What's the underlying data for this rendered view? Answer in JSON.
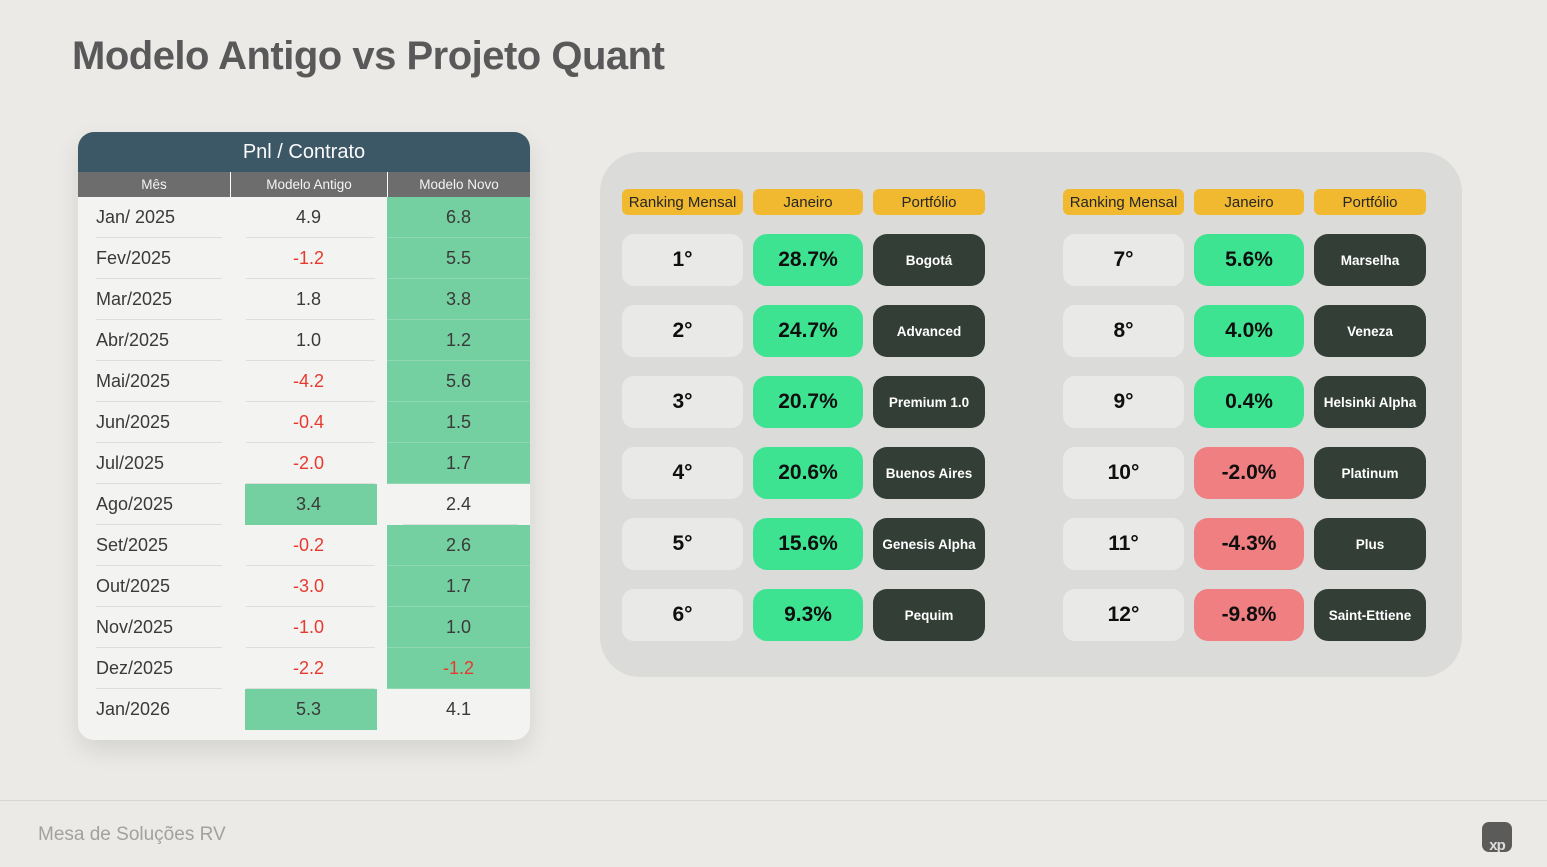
{
  "page": {
    "title": "Modelo Antigo vs Projeto Quant",
    "footer": "Mesa de Soluções RV",
    "logo_text": "xp"
  },
  "pnl_table": {
    "title": "Pnl / Contrato",
    "columns": [
      "Mês",
      "Modelo Antigo",
      "Modelo Novo"
    ],
    "rows": [
      {
        "month": "Jan/ 2025",
        "antigo": "4.9",
        "novo": "6.8",
        "winner": "novo",
        "antigo_neg": false,
        "novo_neg": false
      },
      {
        "month": "Fev/2025",
        "antigo": "-1.2",
        "novo": "5.5",
        "winner": "novo",
        "antigo_neg": true,
        "novo_neg": false
      },
      {
        "month": "Mar/2025",
        "antigo": "1.8",
        "novo": "3.8",
        "winner": "novo",
        "antigo_neg": false,
        "novo_neg": false
      },
      {
        "month": "Abr/2025",
        "antigo": "1.0",
        "novo": "1.2",
        "winner": "novo",
        "antigo_neg": false,
        "novo_neg": false
      },
      {
        "month": "Mai/2025",
        "antigo": "-4.2",
        "novo": "5.6",
        "winner": "novo",
        "antigo_neg": true,
        "novo_neg": false
      },
      {
        "month": "Jun/2025",
        "antigo": "-0.4",
        "novo": "1.5",
        "winner": "novo",
        "antigo_neg": true,
        "novo_neg": false
      },
      {
        "month": "Jul/2025",
        "antigo": "-2.0",
        "novo": "1.7",
        "winner": "novo",
        "antigo_neg": true,
        "novo_neg": false
      },
      {
        "month": "Ago/2025",
        "antigo": "3.4",
        "novo": "2.4",
        "winner": "antigo",
        "antigo_neg": false,
        "novo_neg": false
      },
      {
        "month": "Set/2025",
        "antigo": "-0.2",
        "novo": "2.6",
        "winner": "novo",
        "antigo_neg": true,
        "novo_neg": false
      },
      {
        "month": "Out/2025",
        "antigo": "-3.0",
        "novo": "1.7",
        "winner": "novo",
        "antigo_neg": true,
        "novo_neg": false
      },
      {
        "month": "Nov/2025",
        "antigo": "-1.0",
        "novo": "1.0",
        "winner": "novo",
        "antigo_neg": true,
        "novo_neg": false
      },
      {
        "month": "Dez/2025",
        "antigo": "-2.2",
        "novo": "-1.2",
        "winner": "novo",
        "antigo_neg": true,
        "novo_neg": true
      },
      {
        "month": "Jan/2026",
        "antigo": "5.3",
        "novo": "4.1",
        "winner": "antigo",
        "antigo_neg": false,
        "novo_neg": false
      }
    ]
  },
  "rankings": {
    "headers": [
      "Ranking Mensal",
      "Janeiro",
      "Portfólio"
    ],
    "left": [
      {
        "rank": "1°",
        "pct": "28.7%",
        "portfolio": "Bogotá",
        "positive": true
      },
      {
        "rank": "2°",
        "pct": "24.7%",
        "portfolio": "Advanced",
        "positive": true
      },
      {
        "rank": "3°",
        "pct": "20.7%",
        "portfolio": "Premium 1.0",
        "positive": true
      },
      {
        "rank": "4°",
        "pct": "20.6%",
        "portfolio": "Buenos Aires",
        "positive": true
      },
      {
        "rank": "5°",
        "pct": "15.6%",
        "portfolio": "Genesis Alpha",
        "positive": true
      },
      {
        "rank": "6°",
        "pct": "9.3%",
        "portfolio": "Pequim",
        "positive": true
      }
    ],
    "right": [
      {
        "rank": "7°",
        "pct": "5.6%",
        "portfolio": "Marselha",
        "positive": true
      },
      {
        "rank": "8°",
        "pct": "4.0%",
        "portfolio": "Veneza",
        "positive": true
      },
      {
        "rank": "9°",
        "pct": "0.4%",
        "portfolio": "Helsinki Alpha",
        "positive": true
      },
      {
        "rank": "10°",
        "pct": "-2.0%",
        "portfolio": "Platinum",
        "positive": false
      },
      {
        "rank": "11°",
        "pct": "-4.3%",
        "portfolio": "Plus",
        "positive": false
      },
      {
        "rank": "12°",
        "pct": "-9.8%",
        "portfolio": "Saint-Ettiene",
        "positive": false
      }
    ]
  },
  "colors": {
    "green_highlight": "#74cfa1",
    "green_pill": "#3ee391",
    "red_pill": "#f07f81",
    "yellow_pill": "#f1b92f",
    "dark_pill": "#333e37",
    "negative_text": "#e8392f",
    "table_header": "#3c5766",
    "table_subheader": "#6d6d6d"
  }
}
